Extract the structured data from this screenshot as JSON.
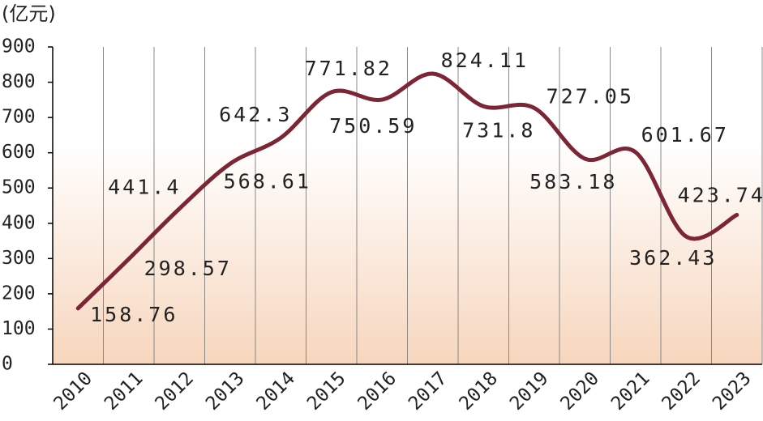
{
  "chart_data": {
    "type": "line",
    "y_axis_label": "(亿元)",
    "categories": [
      "2010",
      "2011",
      "2012",
      "2013",
      "2014",
      "2015",
      "2016",
      "2017",
      "2018",
      "2019",
      "2020",
      "2021",
      "2022",
      "2023"
    ],
    "series": [
      {
        "name": "",
        "color": "#7b2535",
        "values": [
          158.76,
          298.57,
          441.4,
          568.61,
          642.3,
          771.82,
          750.59,
          824.11,
          731.8,
          727.05,
          583.18,
          601.67,
          362.43,
          423.74
        ]
      }
    ],
    "ylim": [
      0,
      900
    ],
    "yticks": [
      0,
      100,
      200,
      300,
      400,
      500,
      600,
      700,
      800,
      900
    ],
    "grid": true
  }
}
